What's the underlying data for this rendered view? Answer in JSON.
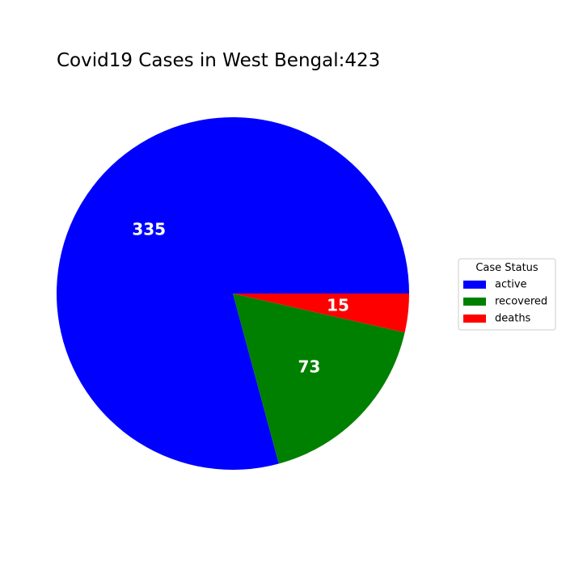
{
  "chart_data": {
    "type": "pie",
    "title": "Covid19 Cases in West Bengal:423",
    "categories": [
      "active",
      "recovered",
      "deaths"
    ],
    "values": [
      335,
      73,
      15
    ],
    "colors": [
      "#0000ff",
      "#008000",
      "#ff0000"
    ],
    "start_angle_deg": 0,
    "direction": "counterclockwise",
    "legend": {
      "title": "Case Status",
      "placement": "center-right"
    }
  }
}
